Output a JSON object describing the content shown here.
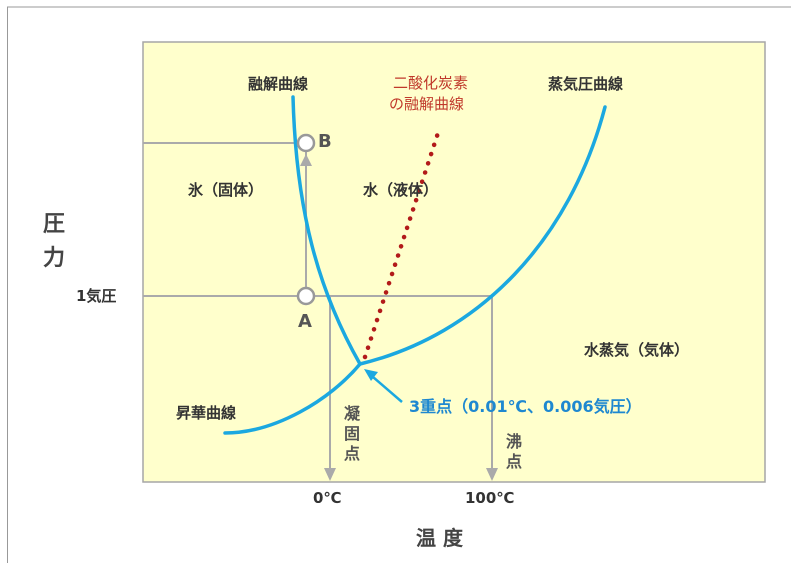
{
  "y_axis_label": "圧力",
  "x_axis_label": "温 度",
  "pressure_tick": "1気圧",
  "temp_ticks": {
    "zero": "0℃",
    "hundred": "100℃"
  },
  "curves": {
    "fusion": "融解曲線",
    "co2_fusion_line1": "二酸化炭素",
    "co2_fusion_line2": "の融解曲線",
    "vapor_pressure": "蒸気圧曲線",
    "sublimation": "昇華曲線"
  },
  "regions": {
    "solid": "氷（固体）",
    "liquid": "水（液体）",
    "gas": "水蒸気（気体）"
  },
  "points": {
    "a": "A",
    "b": "B",
    "triple_point": "3重点（0.01℃、0.006気圧）"
  },
  "markers": {
    "freezing_point": "凝固点",
    "boiling_point": "沸点"
  },
  "colors": {
    "plot_bg": "#FFFFCC",
    "curve": "#1BA8E0",
    "guide": "#AAAAAA",
    "co2_line": "#B21A1A",
    "triple_label": "#1E88D0",
    "co2_label": "#C0392B"
  }
}
